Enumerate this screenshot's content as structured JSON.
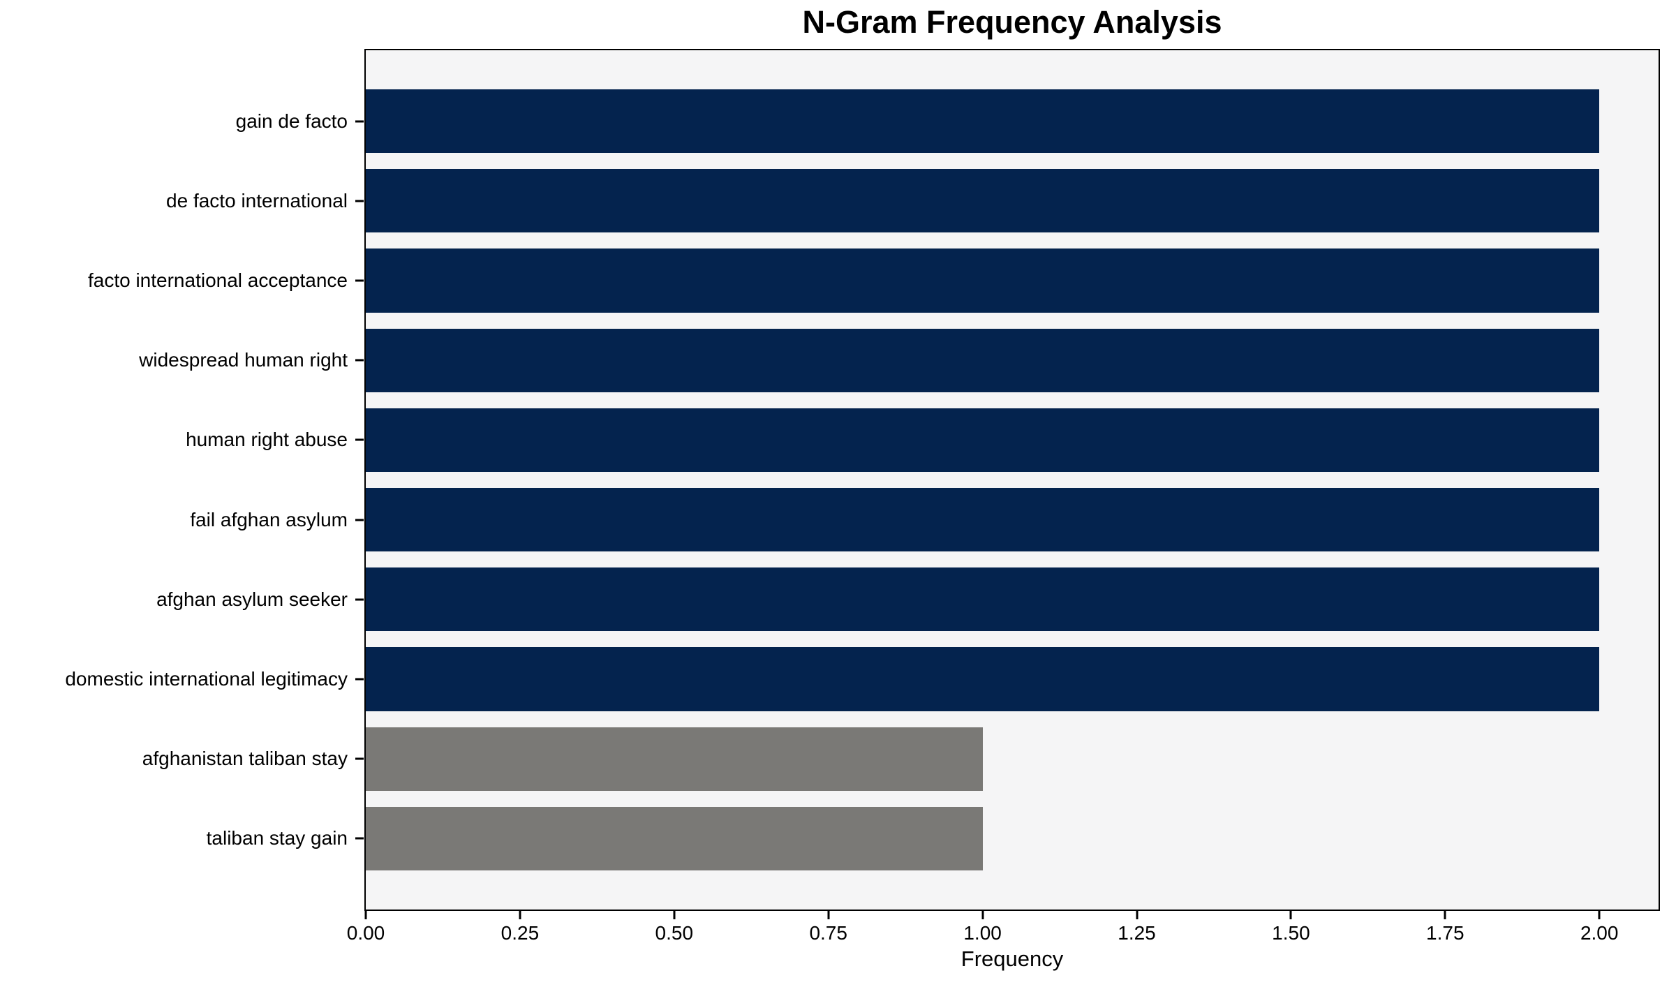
{
  "chart_data": {
    "type": "bar",
    "orientation": "horizontal",
    "title": "N-Gram Frequency Analysis",
    "xlabel": "Frequency",
    "ylabel": "",
    "categories": [
      "gain de facto",
      "de facto international",
      "facto international acceptance",
      "widespread human right",
      "human right abuse",
      "fail afghan asylum",
      "afghan asylum seeker",
      "domestic international legitimacy",
      "afghanistan taliban stay",
      "taliban stay gain"
    ],
    "values": [
      2,
      2,
      2,
      2,
      2,
      2,
      2,
      2,
      1,
      1
    ],
    "colors": [
      "#04234e",
      "#04234e",
      "#04234e",
      "#04234e",
      "#04234e",
      "#04234e",
      "#04234e",
      "#04234e",
      "#7a7976",
      "#7a7976"
    ],
    "xlim": [
      0,
      2.096
    ],
    "xticks": [
      0,
      0.25,
      0.5,
      0.75,
      1.0,
      1.25,
      1.5,
      1.75,
      2.0
    ],
    "xtick_labels": [
      "0.00",
      "0.25",
      "0.50",
      "0.75",
      "1.00",
      "1.25",
      "1.50",
      "1.75",
      "2.00"
    ],
    "bar_height_ratio": 0.8,
    "edge_padding_units": 0.49,
    "plot_bg": "#f5f5f6",
    "figure_bg": "#ffffff",
    "spine_color": "#000000",
    "legend": "none",
    "grid": "off"
  }
}
